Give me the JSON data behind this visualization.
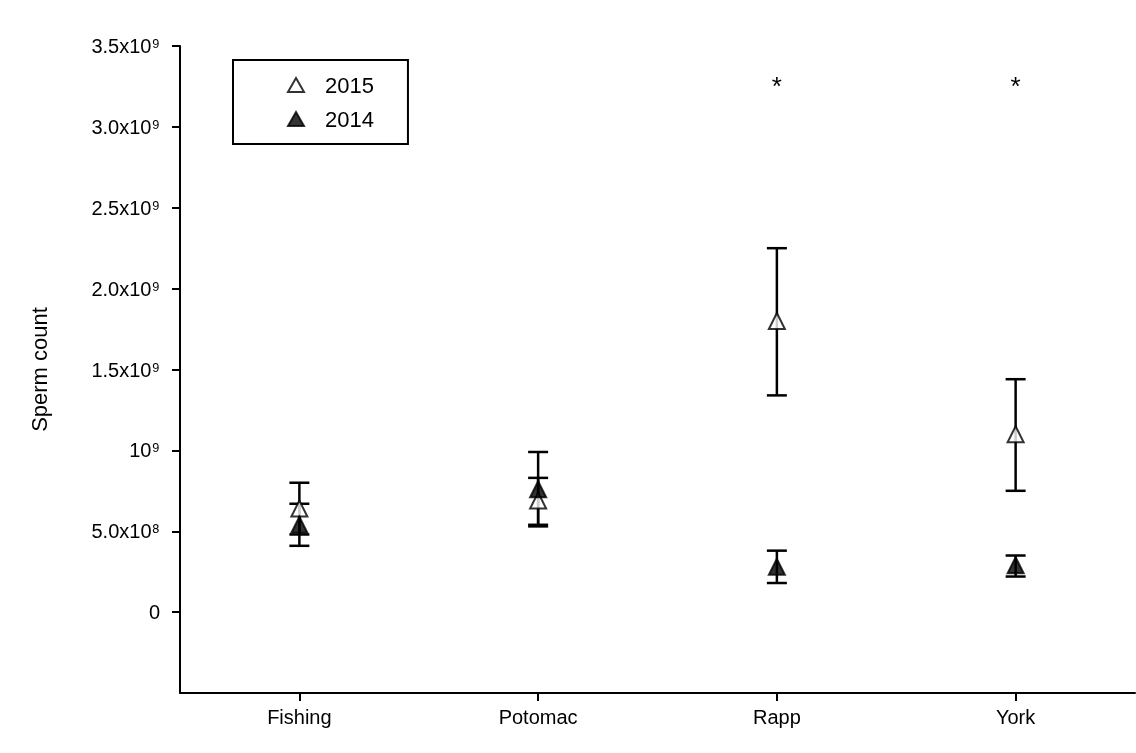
{
  "chart_data": {
    "type": "scatter",
    "ylabel": "Sperm count",
    "categories": [
      "Fishing",
      "Potomac",
      "Rapp",
      "York"
    ],
    "series": [
      {
        "name": "2015",
        "color": "#ffffff",
        "values": [
          640000000,
          690000000,
          1800000000,
          1100000000
        ],
        "errors": [
          [
            480000000,
            800000000
          ],
          [
            540000000,
            830000000
          ],
          [
            1340000000,
            2250000000
          ],
          [
            750000000,
            1440000000
          ]
        ]
      },
      {
        "name": "2014",
        "color": "#000000",
        "values": [
          540000000,
          760000000,
          280000000,
          290000000
        ],
        "errors": [
          [
            410000000,
            670000000
          ],
          [
            530000000,
            990000000
          ],
          [
            180000000,
            380000000
          ],
          [
            220000000,
            350000000
          ]
        ]
      }
    ],
    "ylim": [
      -500000000,
      3500000000
    ],
    "yticks": [
      0,
      {
        "value": 500000000,
        "label": "5.0x10⁸"
      },
      {
        "value": 1000000000,
        "label": "10⁹"
      },
      {
        "value": 1500000000,
        "label": "1.5x10⁹"
      },
      {
        "value": 2000000000,
        "label": "2.0x10⁹"
      },
      {
        "value": 2500000000,
        "label": "2.5x10⁹"
      },
      {
        "value": 3000000000,
        "label": "3.0x10⁹"
      },
      {
        "value": 3500000000,
        "label": "3.5x10⁹"
      }
    ],
    "annotations": [
      "*",
      "*"
    ],
    "marker": "triangle",
    "legend": "top left",
    "grid": false
  }
}
